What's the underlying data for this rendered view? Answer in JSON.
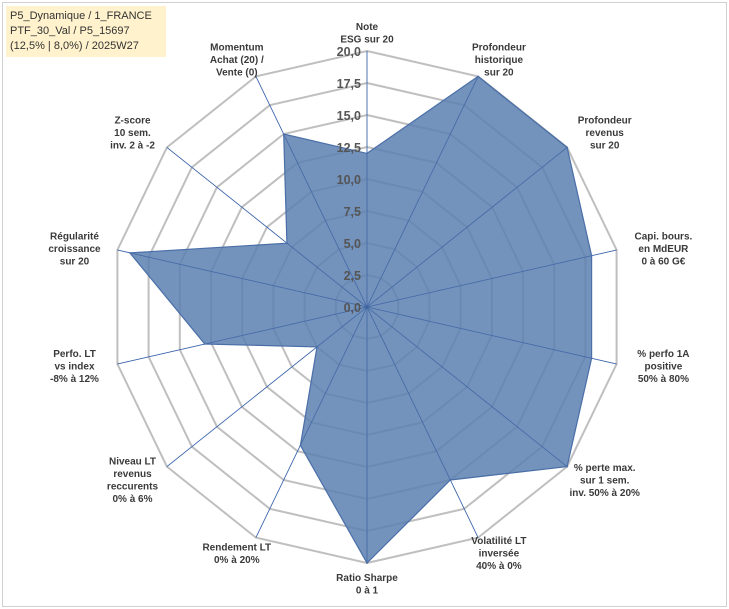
{
  "header": {
    "lines": [
      "P5_Dynamique / 1_FRANCE",
      "PTF_30_Val / P5_15697",
      "(12,5% | 8,0%) / 2025W27"
    ]
  },
  "colors": {
    "fill": "#5b7fb0",
    "stroke": "#4a6fa8",
    "grid": "#bfbfbf",
    "spoke": "#4472c4"
  },
  "chart_data": {
    "type": "radar",
    "rmax": 20,
    "ticks": [
      "0,0",
      "2,5",
      "5,0",
      "7,5",
      "10,0",
      "12,5",
      "15,0",
      "17,5",
      "20,0"
    ],
    "tick_values": [
      0,
      2.5,
      5,
      7.5,
      10,
      12.5,
      15,
      17.5,
      20
    ],
    "categories": [
      [
        "Note",
        "ESG sur 20"
      ],
      [
        "Profondeur",
        "historique",
        "sur 20"
      ],
      [
        "Profondeur",
        "revenus",
        "sur 20"
      ],
      [
        "Capi. bours.",
        "en MdEUR",
        "0 à 60 G€"
      ],
      [
        "% perfo 1A",
        "positive",
        "50% à 80%"
      ],
      [
        "% perte max.",
        "sur 1 sem.",
        "inv. 50% à 20%"
      ],
      [
        "Volatilité LT",
        "inversée",
        "40% à 0%"
      ],
      [
        "Ratio Sharpe",
        "0 à 1"
      ],
      [
        "Rendement LT",
        "0% à 20%"
      ],
      [
        "Niveau LT",
        "revenus",
        "reccurents",
        "0% à 6%"
      ],
      [
        "Perfo. LT",
        "vs index",
        "-8% à 12%"
      ],
      [
        "Régularité",
        "croissance",
        "sur 20"
      ],
      [
        "Z-score",
        "10 sem.",
        "inv. 2 à -2"
      ],
      [
        "Momentum",
        "Achat (20) /",
        "Vente (0)"
      ]
    ],
    "values": [
      12,
      20,
      20,
      18,
      18,
      20,
      15,
      20,
      12,
      5,
      13,
      19,
      8,
      15
    ]
  }
}
